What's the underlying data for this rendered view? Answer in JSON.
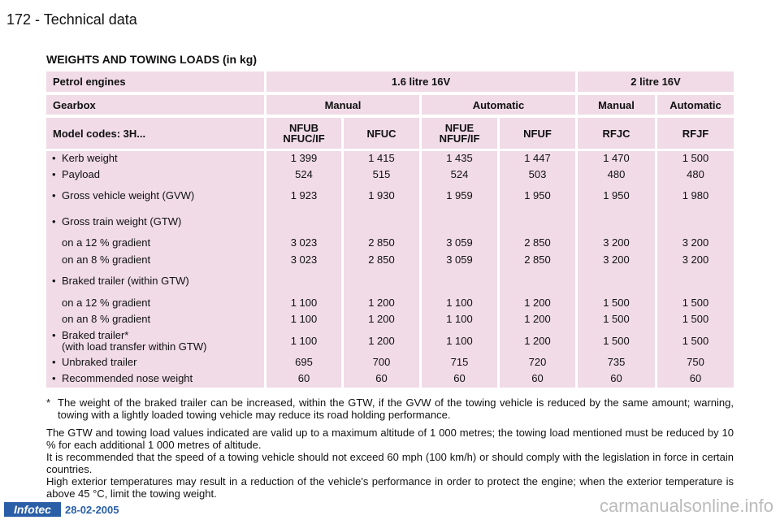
{
  "header": {
    "page": "172 - Technical data"
  },
  "title": "WEIGHTS AND TOWING LOADS (in kg)",
  "table": {
    "header_rows": [
      [
        "Petrol engines",
        "1.6 litre 16V",
        "2 litre 16V"
      ],
      [
        "Gearbox",
        "Manual",
        "Automatic",
        "Manual",
        "Automatic"
      ],
      [
        "Model codes: 3H...",
        "NFUB\nNFUC/IF",
        "NFUC",
        "NFUE\nNFUF/IF",
        "NFUF",
        "RFJC",
        "RFJF"
      ]
    ],
    "rows": [
      {
        "label": "Kerb weight",
        "values": [
          "1 399",
          "1 415",
          "1 435",
          "1 447",
          "1 470",
          "1 500"
        ]
      },
      {
        "label": "Payload",
        "values": [
          "524",
          "515",
          "524",
          "503",
          "480",
          "480"
        ]
      },
      {
        "label": "Gross vehicle weight (GVW)",
        "values": [
          "1 923",
          "1 930",
          "1 959",
          "1 950",
          "1 950",
          "1 980"
        ]
      },
      {
        "label": "Gross train weight (GTW)"
      },
      {
        "sublabel": "on a 12 % gradient",
        "values": [
          "3 023",
          "2 850",
          "3 059",
          "2 850",
          "3 200",
          "3 200"
        ]
      },
      {
        "sublabel": "on an 8 % gradient",
        "values": [
          "3 023",
          "2 850",
          "3 059",
          "2 850",
          "3 200",
          "3 200"
        ]
      },
      {
        "label": "Braked trailer (within GTW)"
      },
      {
        "sublabel": "on a 12 % gradient",
        "values": [
          "1 100",
          "1 200",
          "1 100",
          "1 200",
          "1 500",
          "1 500"
        ]
      },
      {
        "sublabel": "on an 8 % gradient",
        "values": [
          "1 100",
          "1 200",
          "1 100",
          "1 200",
          "1 500",
          "1 500"
        ]
      },
      {
        "label": "Braked trailer*\n(with load transfer within GTW)",
        "values": [
          "1 100",
          "1 200",
          "1 100",
          "1 200",
          "1 500",
          "1 500"
        ]
      },
      {
        "label": "Unbraked trailer",
        "values": [
          "695",
          "700",
          "715",
          "720",
          "735",
          "750"
        ]
      },
      {
        "label": "Recommended nose weight",
        "values": [
          "60",
          "60",
          "60",
          "60",
          "60",
          "60"
        ]
      }
    ]
  },
  "footnote": {
    "mark": "*",
    "text": "The weight of the braked trailer can be increased, within the GTW, if the GVW of the towing vehicle is reduced by the same amount; warning, towing with a lightly loaded towing vehicle may reduce its road holding performance."
  },
  "paragraphs": [
    "The GTW and towing load values indicated are valid up to a maximum altitude of 1 000 metres; the towing load mentioned must be reduced by 10 % for each additional 1 000 metres of altitude.",
    "It is recommended that the speed of a towing vehicle should not exceed 60 mph (100 km/h) or should comply with the legislation in force in certain countries.",
    "High exterior temperatures may result in a reduction of the vehicle's performance in order to protect the engine; when the exterior temperature is above 45 °C, limit the towing weight."
  ],
  "footer": {
    "logo": "Infotec",
    "date": "28-02-2005",
    "watermark": "carmanualsonline.info"
  }
}
